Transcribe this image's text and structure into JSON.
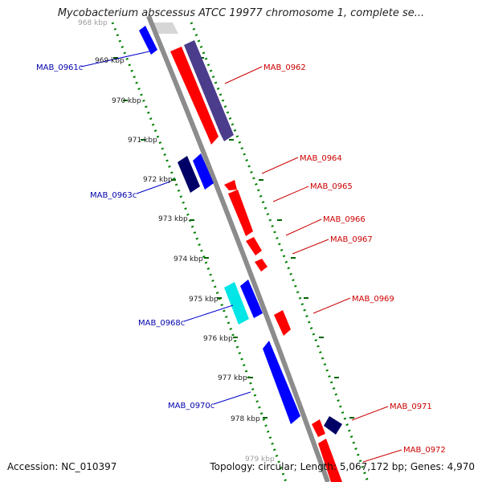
{
  "title": "Mycobacterium abscessus ATCC 19977 chromosome 1, complete se...",
  "accession": "Accession: NC_010397",
  "topology": "Topology: circular; Length: 5,067,172 bp; Genes: 4,970",
  "colors": {
    "backbone": "#8c8c8c",
    "forward_gene": "#ff0000",
    "forward_label": "#cc0000",
    "reverse_gene": "#0000ff",
    "reverse_label": "#0000aa",
    "dark_reverse_gene": "#000066",
    "slate_gene": "#4b3d8c",
    "cyan_gene": "#00e5e5",
    "tick_ring": "#008000"
  },
  "scale_ticks": [
    "968 kbp",
    "969 kbp",
    "970 kbp",
    "971 kbp",
    "972 kbp",
    "973 kbp",
    "974 kbp",
    "975 kbp",
    "976 kbp",
    "977 kbp",
    "978 kbp",
    "979 kbp"
  ],
  "reverse_labels": [
    "MAB_0961c",
    "MAB_0963c",
    "MAB_0968c",
    "MAB_0970c"
  ],
  "forward_labels": [
    "MAB_0962",
    "MAB_0964",
    "MAB_0965",
    "MAB_0966",
    "MAB_0967",
    "MAB_0969",
    "MAB_0971",
    "MAB_0972"
  ]
}
